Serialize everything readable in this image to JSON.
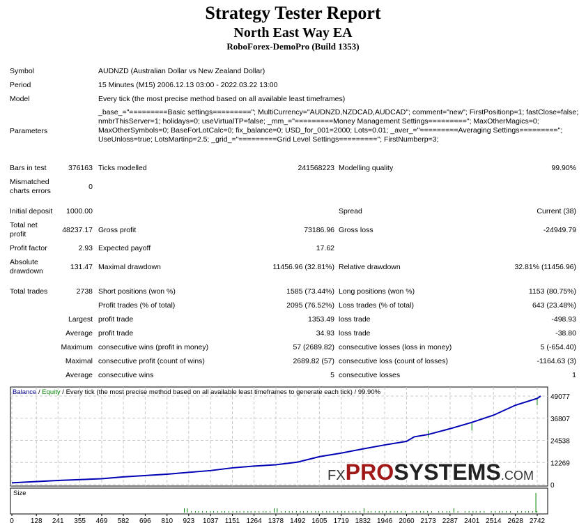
{
  "header": {
    "title": "Strategy Tester Report",
    "ea": "North East Way EA",
    "server": "RoboForex-DemoPro (Build 1353)"
  },
  "info": {
    "symbol_label": "Symbol",
    "symbol": "AUDNZD (Australian Dollar vs New Zealand Dollar)",
    "period_label": "Period",
    "period": "15 Minutes (M15) 2006.12.13 03:00 - 2022.03.22 13:00",
    "model_label": "Model",
    "model": "Every tick (the most precise method based on all available least timeframes)",
    "parameters_label": "Parameters",
    "parameters": "_base_=\"=========Basic settings=========\"; MultiCurrency=\"AUDNZD,NZDCAD,AUDCAD\"; comment=\"new\"; FirstPositionp=1; fastClose=false; nmbrThisServer=1; holidays=0; useVirtualTP=false; _mm_=\"=========Money Management Settings=========\"; MaxOtherMagics=0; MaxOtherSymbols=0; BaseForLotCalc=0; fix_balance=0; USD_for_001=2000; Lots=0.01; _aver_=\"=========Averaging Settings=========\"; UseUnloss=true; LotsMartinp=2.5; _grid_=\"=========Grid Level Settings=========\"; FirstNumberp=3;"
  },
  "stats": {
    "bars_label": "Bars in test",
    "bars": "376163",
    "ticks_label": "Ticks modelled",
    "ticks": "241568223",
    "quality_label": "Modelling quality",
    "quality": "99.90%",
    "mismatch_label1": "Mismatched",
    "mismatch_label2": "charts errors",
    "mismatch": "0",
    "deposit_label": "Initial deposit",
    "deposit": "1000.00",
    "spread_label": "Spread",
    "spread": "Current (38)",
    "net_label1": "Total net",
    "net_label2": "profit",
    "net": "48237.17",
    "gross_profit_label": "Gross profit",
    "gross_profit": "73186.96",
    "gross_loss_label": "Gross loss",
    "gross_loss": "-24949.79",
    "pf_label": "Profit factor",
    "pf": "2.93",
    "ep_label": "Expected payoff",
    "ep": "17.62",
    "abs_dd_label1": "Absolute",
    "abs_dd_label2": "drawdown",
    "abs_dd": "131.47",
    "max_dd_label": "Maximal drawdown",
    "max_dd": "11456.96 (32.81%)",
    "rel_dd_label": "Relative drawdown",
    "rel_dd": "32.81% (11456.96)",
    "trades_label": "Total trades",
    "trades": "2738",
    "short_label": "Short positions (won %)",
    "short": "1585 (73.44%)",
    "long_label": "Long positions (won %)",
    "long": "1153 (80.75%)",
    "pt_label": "Profit trades (% of total)",
    "pt": "2095 (76.52%)",
    "lt_label": "Loss trades (% of total)",
    "lt": "643 (23.48%)",
    "largest": "Largest",
    "lp_label": "profit trade",
    "lp": "1353.49",
    "ll_label": "loss trade",
    "ll": "-498.93",
    "average": "Average",
    "ap_label": "profit trade",
    "ap": "34.93",
    "al_label": "loss trade",
    "al": "-38.80",
    "maximum": "Maximum",
    "mcw_label": "consecutive wins (profit in money)",
    "mcw": "57 (2689.82)",
    "mcl_label": "consecutive losses (loss in money)",
    "mcl": "5 (-654.40)",
    "maximal": "Maximal",
    "mcp_label": "consecutive profit (count of wins)",
    "mcp": "2689.82 (57)",
    "mclo_label": "consecutive loss (count of losses)",
    "mclo": "-1164.63 (3)",
    "average2": "Average",
    "acw_label": "consecutive wins",
    "acw": "5",
    "acl_label": "consecutive losses",
    "acl": "1"
  },
  "chart_data": {
    "type": "line",
    "legend_balance": "Balance",
    "legend_sep": " / ",
    "legend_equity": "Equity",
    "legend_rest": " / Every tick (the most precise method based on all available least timeframes to generate each tick) / 99.90%",
    "size_label": "Size",
    "y_ticks": [
      "49077",
      "36807",
      "24538",
      "12269",
      "0"
    ],
    "x_ticks": [
      "0",
      "128",
      "241",
      "355",
      "469",
      "582",
      "696",
      "810",
      "923",
      "1037",
      "1151",
      "1264",
      "1378",
      "1492",
      "1605",
      "1719",
      "1832",
      "1946",
      "2060",
      "2173",
      "2287",
      "2401",
      "2514",
      "2628",
      "2742"
    ],
    "ylim": [
      0,
      49077
    ],
    "xlim": [
      0,
      2760
    ],
    "balance_x": [
      0,
      241,
      469,
      582,
      810,
      1037,
      1151,
      1264,
      1378,
      1492,
      1605,
      1719,
      1832,
      1946,
      2060,
      2100,
      2173,
      2287,
      2401,
      2514,
      2628,
      2742,
      2760
    ],
    "balance_y": [
      1000,
      2300,
      3300,
      4300,
      5800,
      7800,
      9300,
      10300,
      11000,
      12500,
      15500,
      17500,
      19800,
      22000,
      24000,
      26500,
      27800,
      31000,
      34500,
      38500,
      44000,
      47800,
      49077
    ],
    "colors": {
      "balance": "#0000b4",
      "equity": "#008000",
      "grid": "#c8c8c8"
    }
  },
  "watermark": "FXPROSYSTEMS.COM"
}
